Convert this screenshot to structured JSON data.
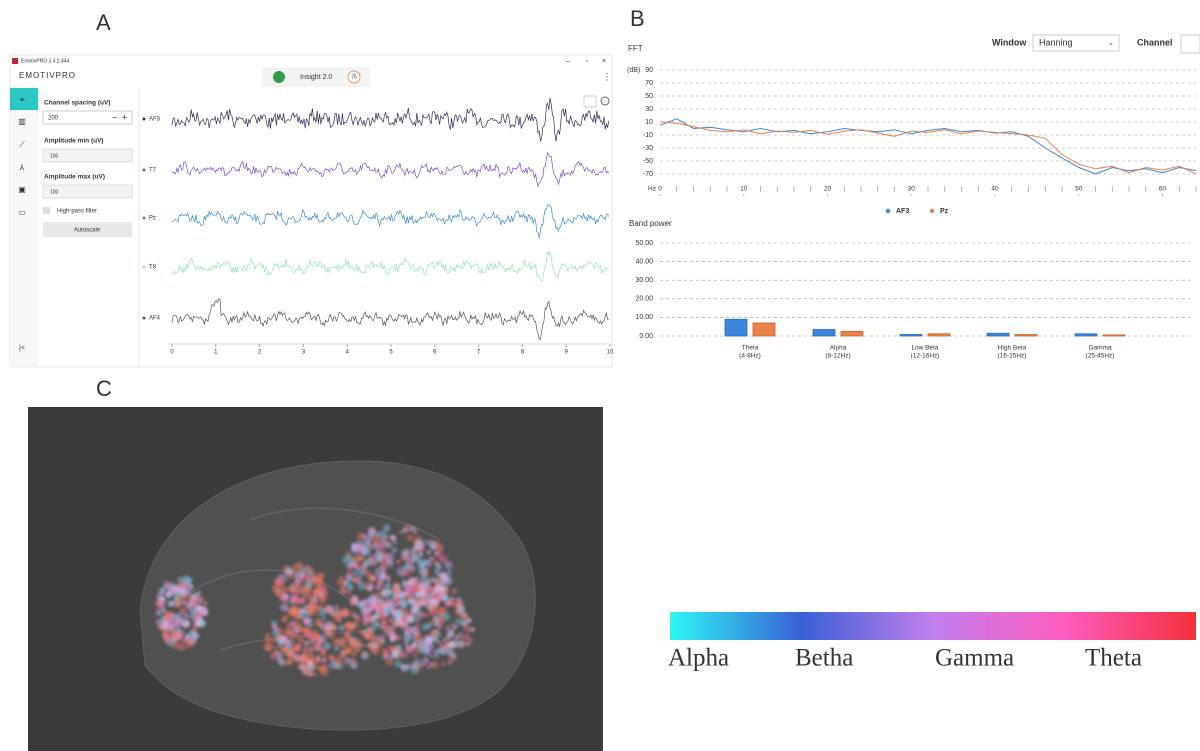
{
  "panel_labels": [
    "A",
    "B",
    "C"
  ],
  "app_window": {
    "title": "EmotivPRO 3.4.2.444",
    "logo": "EMOTIVPRO",
    "headset": "Insight 2.0",
    "battery": "75",
    "controls": {
      "channel_spacing_label": "Channel spacing (uV)",
      "channel_spacing": "200",
      "amplitude_min_label": "Amplitude min (uV)",
      "amplitude_min": "100",
      "amplitude_max_label": "Amplitude max (uV)",
      "amplitude_max": "100",
      "high_pass_filter": "High-pass filter",
      "autoscale": "Autoscale"
    },
    "channels": [
      "AF3",
      "T7",
      "Pz",
      "T8",
      "AF4"
    ],
    "channel_colors": [
      "#2b2f5a",
      "#7b4fd0",
      "#3a8ad0",
      "#8fe6b0",
      "#555555"
    ],
    "xlim": [
      0,
      10
    ],
    "xticks": [
      0,
      1,
      2,
      3,
      4,
      5,
      6,
      7,
      8,
      9,
      10
    ]
  },
  "fft_controls": {
    "window_label": "Window",
    "window_value": "Hanning",
    "channel_label": "Channel"
  },
  "chart_data": [
    {
      "type": "line",
      "title": "FFT",
      "y_label": "(dB)",
      "x_label": "Hz",
      "x": [
        0,
        2,
        4,
        6,
        8,
        10,
        12,
        14,
        16,
        18,
        20,
        22,
        24,
        26,
        28,
        30,
        32,
        34,
        36,
        38,
        40,
        42,
        44,
        46,
        48,
        50,
        52,
        54,
        56,
        58,
        60,
        62,
        64
      ],
      "xlim": [
        0,
        64
      ],
      "xticks": [
        0,
        10,
        20,
        30,
        40,
        50,
        60
      ],
      "ylim": [
        -70,
        90
      ],
      "yticks": [
        90,
        70,
        50,
        30,
        10,
        -10,
        -30,
        -50,
        -70
      ],
      "grid": true,
      "legend": "bottom",
      "series": [
        {
          "name": "AF3",
          "color": "#3b86d8",
          "values": [
            5,
            15,
            0,
            2,
            -2,
            -5,
            0,
            -5,
            -3,
            -8,
            -5,
            0,
            -3,
            -5,
            -2,
            -8,
            -3,
            0,
            -5,
            -3,
            -7,
            -5,
            -12,
            -30,
            -45,
            -60,
            -70,
            -60,
            -65,
            -62,
            -68,
            -60,
            -65
          ]
        },
        {
          "name": "Pz",
          "color": "#e8824a",
          "values": [
            10,
            8,
            3,
            -3,
            -5,
            -2,
            -8,
            -4,
            -6,
            -3,
            -9,
            -4,
            -2,
            -7,
            -12,
            -4,
            -6,
            -2,
            -8,
            -4,
            -6,
            -8,
            -10,
            -15,
            -40,
            -55,
            -62,
            -58,
            -68,
            -60,
            -64,
            -58,
            -70
          ]
        }
      ]
    },
    {
      "type": "bar",
      "title": "Band power",
      "categories": [
        "Theta",
        "Alpha",
        "Low Beta",
        "High Beta",
        "Gamma"
      ],
      "category_ranges": [
        "(4-8Hz)",
        "(8-12Hz)",
        "(12-16Hz)",
        "(16-25Hz)",
        "(25-45Hz)"
      ],
      "ylim": [
        0,
        50
      ],
      "yticks": [
        {
          "value": 0,
          "label": "0.00"
        },
        {
          "value": 10,
          "label": "10.00"
        },
        {
          "value": 20,
          "label": "20.00"
        },
        {
          "value": 30,
          "label": "30.00"
        },
        {
          "value": 40,
          "label": "40.00"
        },
        {
          "value": 50,
          "label": "50.00"
        }
      ],
      "grid": true,
      "series": [
        {
          "color": "#3b86d8",
          "values": [
            9,
            3.5,
            0.8,
            1.5,
            1.2
          ]
        },
        {
          "color": "#e8824a",
          "values": [
            7,
            2.5,
            1.2,
            0.8,
            0.6
          ]
        }
      ]
    }
  ],
  "colorbar": {
    "labels": [
      "Alpha",
      "Betha",
      "Gamma",
      "Theta"
    ],
    "colors": [
      "#2ef7f5",
      "#3a5fd6",
      "#c27fee",
      "#ff5cc0",
      "#f5303a"
    ]
  }
}
